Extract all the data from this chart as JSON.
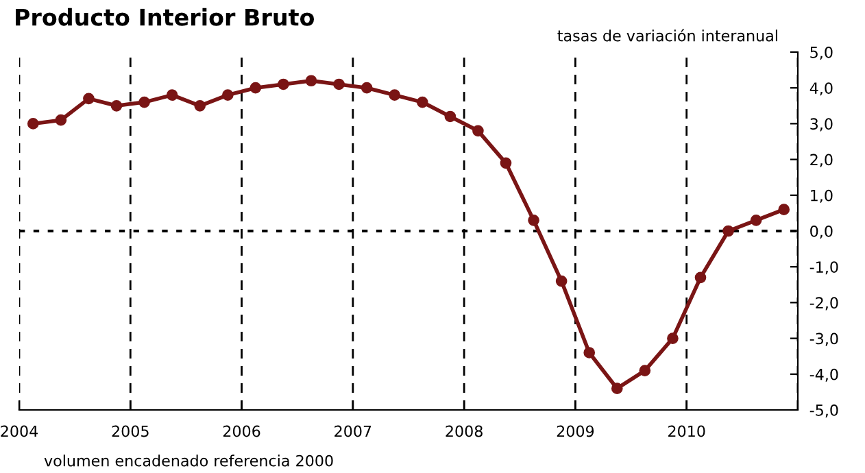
{
  "chart_data": {
    "type": "line",
    "title": "Producto Interior Bruto",
    "subtitle": "tasas de variación interanual",
    "annotations": [
      "volumen encadenado referencia 2000"
    ],
    "x": [
      2004.125,
      2004.375,
      2004.625,
      2004.875,
      2005.125,
      2005.375,
      2005.625,
      2005.875,
      2006.125,
      2006.375,
      2006.625,
      2006.875,
      2007.125,
      2007.375,
      2007.625,
      2007.875,
      2008.125,
      2008.375,
      2008.625,
      2008.875,
      2009.125,
      2009.375,
      2009.625,
      2009.875,
      2010.125,
      2010.375,
      2010.625,
      2010.875
    ],
    "series": [
      {
        "color": "#7a1515",
        "values": [
          3.0,
          3.1,
          3.7,
          3.5,
          3.6,
          3.8,
          3.5,
          3.8,
          4.0,
          4.1,
          4.2,
          4.1,
          4.0,
          3.8,
          3.6,
          3.2,
          2.8,
          1.9,
          0.3,
          -1.4,
          -3.4,
          -4.4,
          -3.9,
          -3.0,
          -1.3,
          0.0,
          0.3,
          0.6
        ]
      }
    ],
    "marker": "circle",
    "line_style": "solid",
    "xlim": [
      2004,
      2011
    ],
    "xticks": [
      2004,
      2005,
      2006,
      2007,
      2008,
      2009,
      2010,
      {
        "value": 2011,
        "label": null
      }
    ],
    "ylim": [
      -5,
      5
    ],
    "yticks": [
      {
        "value": -5,
        "label": "-5,0"
      },
      {
        "value": -4,
        "label": "-4,0"
      },
      {
        "value": -3,
        "label": "-3,0"
      },
      {
        "value": -2,
        "label": "-2,0"
      },
      {
        "value": -1,
        "label": "-1,0"
      },
      {
        "value": 0,
        "label": "0,0"
      },
      {
        "value": 1,
        "label": "1,0"
      },
      {
        "value": 2,
        "label": "2,0"
      },
      {
        "value": 3,
        "label": "3,0"
      },
      {
        "value": 4,
        "label": "4,0"
      },
      {
        "value": 5,
        "label": "5,0"
      }
    ],
    "grid": "x",
    "ref_lines": [
      {
        "axis": "y",
        "value": 0,
        "line_style": "dotted",
        "color": "#000000"
      }
    ]
  }
}
